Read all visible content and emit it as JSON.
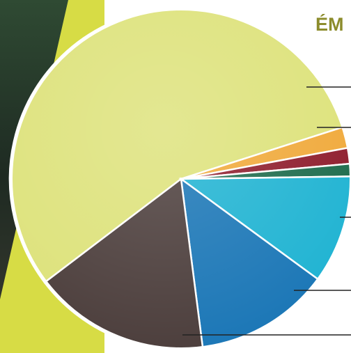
{
  "chart_data": {
    "type": "pie",
    "title": "ÉM",
    "values": [
      55.4,
      2,
      1.5,
      1.2,
      10.3,
      12.9,
      16.7
    ],
    "colors": [
      "#dde27a",
      "#f0a93a",
      "#8e1c2c",
      "#1d6b4c",
      "#1fb3d2",
      "#1a76b6",
      "#4b3d3b"
    ]
  }
}
